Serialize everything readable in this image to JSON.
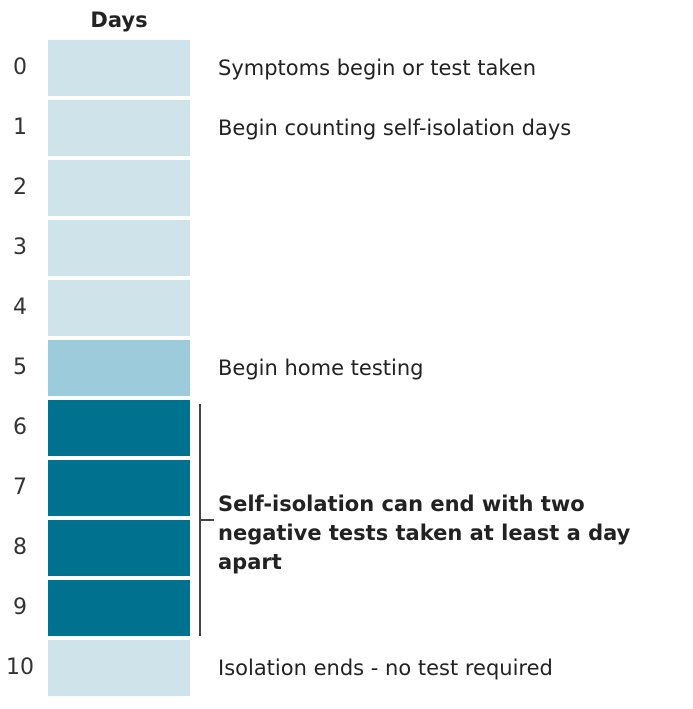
{
  "header": {
    "title": "Days"
  },
  "colors": {
    "light": "#cfe3ea",
    "medium": "#9ccbdb",
    "dark": "#00728f"
  },
  "days": [
    {
      "num": "0",
      "label": "Symptoms begin or test taken",
      "shade": "light"
    },
    {
      "num": "1",
      "label": "Begin counting self-isolation days",
      "shade": "light"
    },
    {
      "num": "2",
      "label": "",
      "shade": "light"
    },
    {
      "num": "3",
      "label": "",
      "shade": "light"
    },
    {
      "num": "4",
      "label": "",
      "shade": "light"
    },
    {
      "num": "5",
      "label": "Begin home testing",
      "shade": "medium"
    },
    {
      "num": "6",
      "label": "",
      "shade": "dark"
    },
    {
      "num": "7",
      "label": "",
      "shade": "dark"
    },
    {
      "num": "8",
      "label": "",
      "shade": "dark"
    },
    {
      "num": "9",
      "label": "",
      "shade": "dark"
    },
    {
      "num": "10",
      "label": "Isolation ends - no test required",
      "shade": "light"
    }
  ],
  "bracket": {
    "text": "Self-isolation can end with two negative tests taken at least a day apart"
  }
}
